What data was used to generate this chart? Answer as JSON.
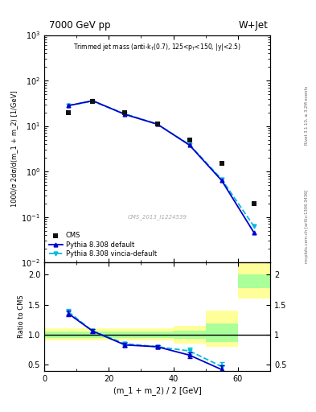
{
  "title_top": "7000 GeV pp",
  "title_right": "W+Jet",
  "ylabel_main": "1000/σ 2dσ/d(m_1 + m_2) [1/GeV]",
  "ylabel_ratio": "Ratio to CMS",
  "xlabel": "(m_1 + m_2) / 2 [GeV]",
  "watermark": "CMS_2013_I1224539",
  "right_label_bottom": "mcplots.cern.ch [arXiv:1306.3436]",
  "right_label_top": "Rivet 3.1.10, ≥ 3.2M events",
  "cms_x": [
    7.5,
    15.0,
    25.0,
    35.0,
    45.0,
    55.0,
    65.0
  ],
  "cms_y": [
    20.0,
    35.0,
    20.0,
    11.0,
    5.0,
    1.5,
    0.2
  ],
  "pythia_default_x": [
    7.5,
    15.0,
    25.0,
    35.0,
    45.0,
    55.0,
    65.0
  ],
  "pythia_default_y": [
    28.0,
    36.0,
    18.0,
    11.0,
    3.8,
    0.63,
    0.045
  ],
  "pythia_vincia_x": [
    7.5,
    15.0,
    25.0,
    35.0,
    45.0,
    55.0,
    65.0
  ],
  "pythia_vincia_y": [
    28.5,
    35.0,
    18.5,
    11.0,
    3.9,
    0.67,
    0.062
  ],
  "ratio_default_x": [
    7.5,
    15.0,
    25.0,
    35.0,
    45.0,
    55.0
  ],
  "ratio_default_y": [
    1.35,
    1.06,
    0.83,
    0.8,
    0.66,
    0.42
  ],
  "ratio_vincia_x": [
    7.5,
    15.0,
    25.0,
    35.0,
    45.0,
    55.0
  ],
  "ratio_vincia_y": [
    1.38,
    1.06,
    0.85,
    0.8,
    0.73,
    0.47
  ],
  "ratio_err_default_lo": [
    0.05,
    0.03,
    0.03,
    0.03,
    0.05,
    0.07
  ],
  "ratio_err_default_hi": [
    0.05,
    0.03,
    0.03,
    0.03,
    0.05,
    0.07
  ],
  "ratio_err_vincia_lo": [
    0.05,
    0.03,
    0.03,
    0.03,
    0.05,
    0.07
  ],
  "ratio_err_vincia_hi": [
    0.05,
    0.03,
    0.03,
    0.03,
    0.05,
    0.07
  ],
  "band_edges": [
    0,
    10,
    20,
    30,
    40,
    50,
    60,
    70
  ],
  "band_yellow_lo": [
    0.9,
    0.9,
    0.9,
    0.9,
    0.85,
    0.8,
    1.6
  ],
  "band_yellow_hi": [
    1.1,
    1.1,
    1.1,
    1.1,
    1.15,
    1.4,
    2.2
  ],
  "band_green_lo": [
    0.95,
    0.95,
    0.95,
    0.95,
    0.93,
    0.88,
    1.78
  ],
  "band_green_hi": [
    1.05,
    1.05,
    1.05,
    1.05,
    1.07,
    1.18,
    2.0
  ],
  "xlim": [
    0,
    70
  ],
  "ylim_main": [
    0.01,
    1000
  ],
  "ylim_ratio": [
    0.4,
    2.2
  ],
  "color_cms": "#111111",
  "color_pythia_default": "#0000cc",
  "color_pythia_vincia": "#00bbdd",
  "color_band_yellow": "#ffff99",
  "color_band_green": "#aaff99",
  "bg_color": "#ffffff"
}
